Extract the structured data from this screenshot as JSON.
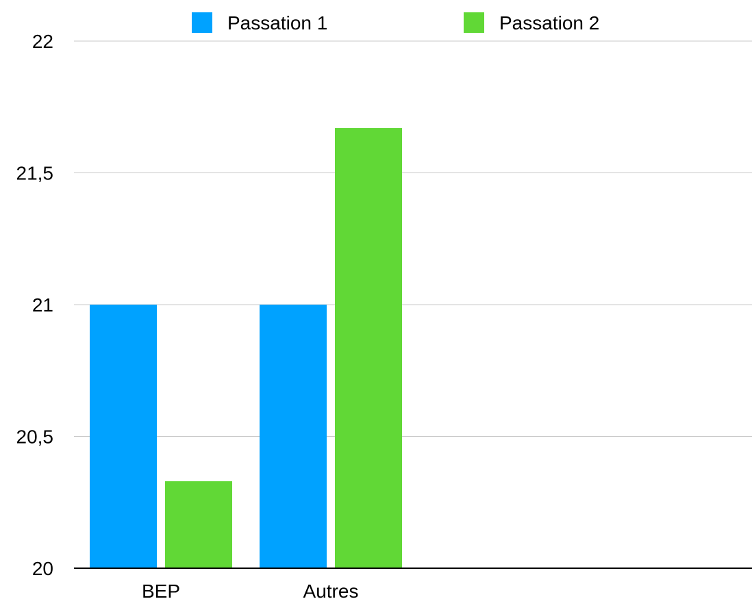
{
  "chart_data": {
    "type": "bar",
    "title": "",
    "xlabel": "",
    "ylabel": "",
    "categories": [
      "BEP",
      "Autres"
    ],
    "series": [
      {
        "name": "Passation 1",
        "color": "#00a2ff",
        "values": [
          21,
          21
        ]
      },
      {
        "name": "Passation 2",
        "color": "#61d836",
        "values": [
          20.33,
          21.67
        ]
      }
    ],
    "ylim": [
      20,
      22
    ],
    "yticks": [
      20,
      20.5,
      21,
      21.5,
      22
    ],
    "ytick_labels": [
      "20",
      "20,5",
      "21",
      "21,5",
      "22"
    ],
    "grid": true,
    "legend_position": "top"
  }
}
